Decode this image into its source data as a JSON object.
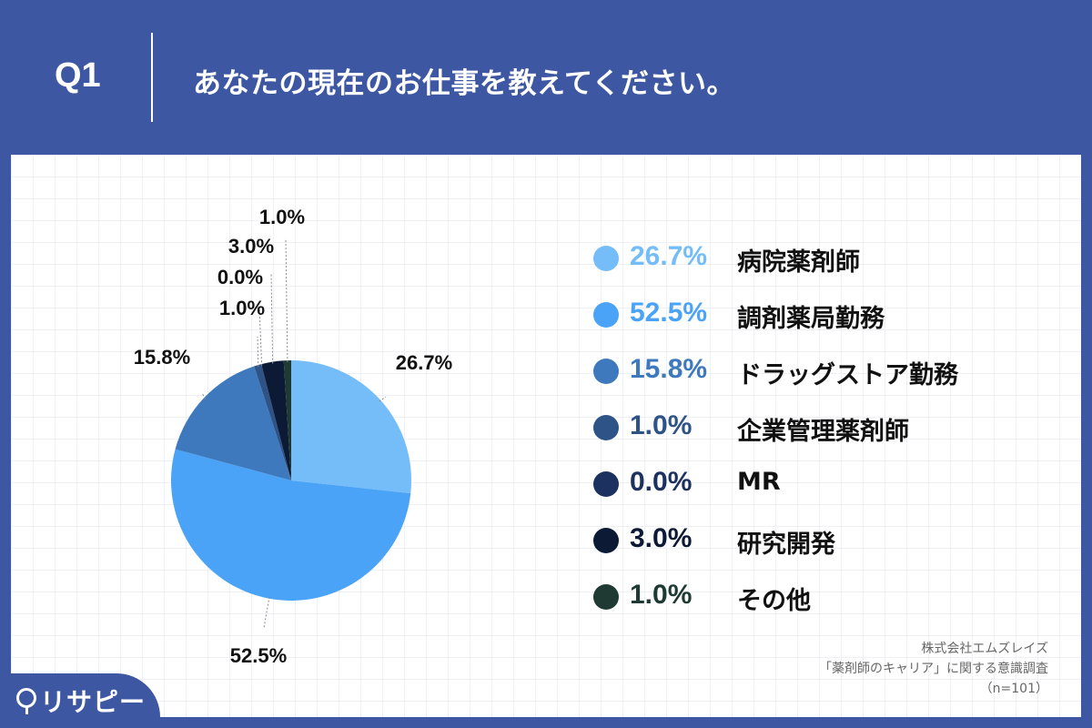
{
  "header": {
    "question_number": "Q1",
    "question_text": "あなたの現在のお仕事を教えてください。"
  },
  "chart_data": {
    "type": "pie",
    "title": "あなたの現在のお仕事を教えてください。",
    "categories": [
      "病院薬剤師",
      "調剤薬局勤務",
      "ドラッグストア勤務",
      "企業管理薬剤師",
      "MR",
      "研究開発",
      "その他"
    ],
    "values": [
      26.7,
      52.5,
      15.8,
      1.0,
      0.0,
      3.0,
      1.0
    ],
    "value_labels": [
      "26.7%",
      "52.5%",
      "15.8%",
      "1.0%",
      "0.0%",
      "3.0%",
      "1.0%"
    ],
    "colors": [
      "#74bdf8",
      "#4aa3f6",
      "#3e79bd",
      "#2e5387",
      "#1d3161",
      "#0c1a36",
      "#1e3a33"
    ],
    "legend_position": "right",
    "start_angle": "top",
    "direction": "clockwise"
  },
  "legend": {
    "items": [
      {
        "pct": "26.7%",
        "name": "病院薬剤師",
        "color": "#74bdf8"
      },
      {
        "pct": "52.5%",
        "name": "調剤薬局勤務",
        "color": "#4aa3f6"
      },
      {
        "pct": "15.8%",
        "name": "ドラッグストア勤務",
        "color": "#3e79bd"
      },
      {
        "pct": "1.0%",
        "name": "企業管理薬剤師",
        "color": "#2e5387"
      },
      {
        "pct": "0.0%",
        "name": "MR",
        "color": "#1d3161"
      },
      {
        "pct": "3.0%",
        "name": "研究開発",
        "color": "#0c1a36"
      },
      {
        "pct": "1.0%",
        "name": "その他",
        "color": "#1e3a33"
      }
    ]
  },
  "credit": {
    "company": "株式会社エムズレイズ",
    "survey": "「薬剤師のキャリア」に関する意識調査",
    "sample": "（n=101）"
  },
  "logo": {
    "text": "リサピー"
  }
}
